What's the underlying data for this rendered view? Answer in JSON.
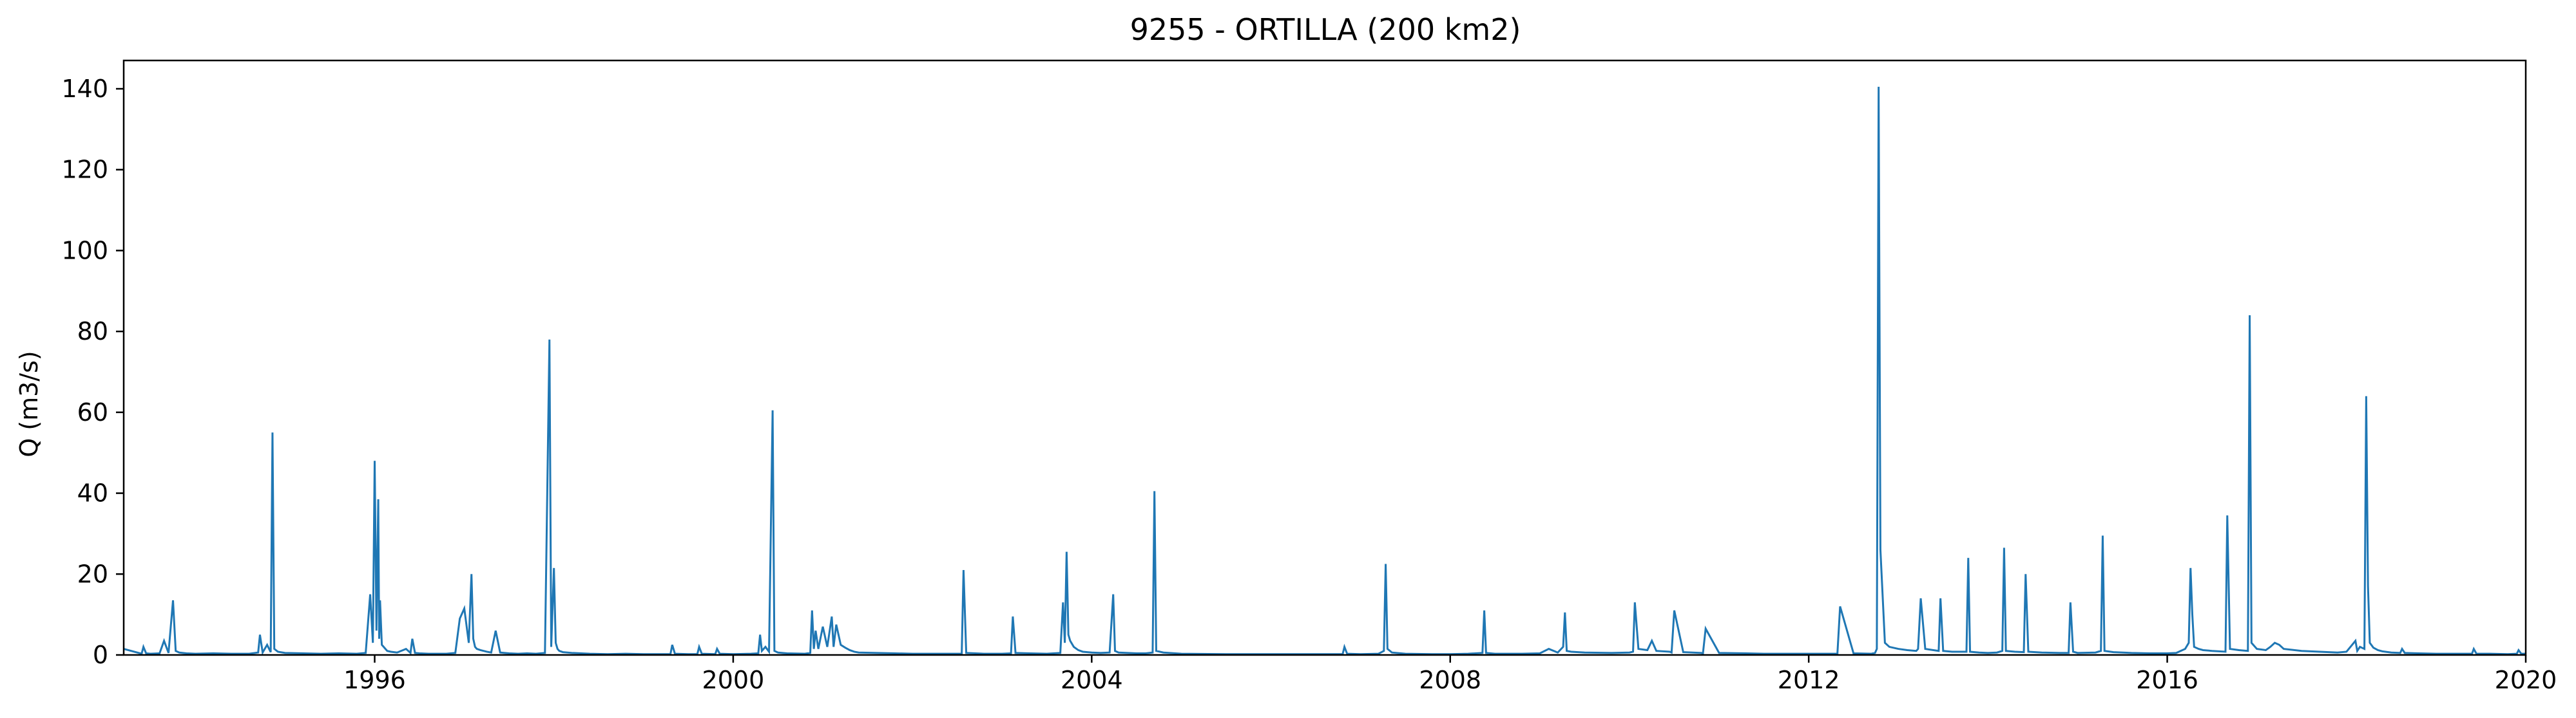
{
  "chart_data": {
    "type": "line",
    "title": "9255 - ORTILLA (200 km2)",
    "xlabel": "",
    "ylabel": "Q (m3/s)",
    "xlim": [
      1993.2,
      2020.0
    ],
    "ylim": [
      0,
      147
    ],
    "x_ticks": [
      "1996",
      "2000",
      "2004",
      "2008",
      "2012",
      "2016",
      "2020"
    ],
    "y_ticks": [
      "0",
      "20",
      "40",
      "60",
      "80",
      "100",
      "120",
      "140"
    ],
    "grid": false,
    "legend": "none",
    "series": [
      {
        "color": "#1f77b4",
        "x": [
          1993.2,
          1993.4,
          1993.42,
          1993.45,
          1993.5,
          1993.6,
          1993.65,
          1993.7,
          1993.75,
          1993.78,
          1993.8,
          1993.82,
          1993.86,
          1993.9,
          1994.0,
          1994.2,
          1994.4,
          1994.6,
          1994.7,
          1994.72,
          1994.75,
          1994.8,
          1994.84,
          1994.86,
          1994.88,
          1994.92,
          1995.0,
          1995.2,
          1995.4,
          1995.6,
          1995.8,
          1995.9,
          1995.95,
          1995.98,
          1996.0,
          1996.02,
          1996.04,
          1996.05,
          1996.06,
          1996.08,
          1996.1,
          1996.12,
          1996.14,
          1996.18,
          1996.25,
          1996.35,
          1996.4,
          1996.42,
          1996.45,
          1996.5,
          1996.6,
          1996.8,
          1996.9,
          1996.95,
          1997.0,
          1997.05,
          1997.08,
          1997.1,
          1997.12,
          1997.14,
          1997.18,
          1997.25,
          1997.3,
          1997.35,
          1997.4,
          1997.45,
          1997.5,
          1997.6,
          1997.7,
          1997.8,
          1997.9,
          1997.95,
          1997.97,
          1998.0,
          1998.02,
          1998.04,
          1998.06,
          1998.1,
          1998.2,
          1998.4,
          1998.6,
          1998.8,
          1999.0,
          1999.2,
          1999.3,
          1999.32,
          1999.35,
          1999.5,
          1999.6,
          1999.62,
          1999.65,
          1999.8,
          1999.82,
          1999.85,
          2000.0,
          2000.2,
          2000.28,
          2000.3,
          2000.32,
          2000.36,
          2000.4,
          2000.44,
          2000.46,
          2000.5,
          2000.6,
          2000.8,
          2000.86,
          2000.88,
          2000.9,
          2000.92,
          2000.95,
          2001.0,
          2001.05,
          2001.1,
          2001.12,
          2001.15,
          2001.2,
          2001.25,
          2001.3,
          2001.35,
          2001.4,
          2001.6,
          2001.8,
          2002.0,
          2002.2,
          2002.4,
          2002.55,
          2002.57,
          2002.6,
          2002.8,
          2003.0,
          2003.1,
          2003.12,
          2003.15,
          2003.3,
          2003.5,
          2003.65,
          2003.68,
          2003.7,
          2003.72,
          2003.74,
          2003.76,
          2003.8,
          2003.85,
          2003.9,
          2004.0,
          2004.1,
          2004.2,
          2004.24,
          2004.26,
          2004.3,
          2004.4,
          2004.5,
          2004.6,
          2004.68,
          2004.7,
          2004.72,
          2004.8,
          2005.0,
          2005.5,
          2006.0,
          2006.5,
          2006.8,
          2006.82,
          2006.85,
          2007.0,
          2007.2,
          2007.26,
          2007.28,
          2007.3,
          2007.35,
          2007.5,
          2007.8,
          2008.0,
          2008.2,
          2008.36,
          2008.38,
          2008.4,
          2008.5,
          2008.8,
          2009.0,
          2009.1,
          2009.2,
          2009.26,
          2009.28,
          2009.3,
          2009.35,
          2009.5,
          2009.8,
          2010.0,
          2010.04,
          2010.06,
          2010.1,
          2010.2,
          2010.25,
          2010.3,
          2010.45,
          2010.47,
          2010.5,
          2010.6,
          2010.8,
          2010.82,
          2010.85,
          2011.0,
          2011.3,
          2011.5,
          2011.8,
          2012.0,
          2012.3,
          2012.32,
          2012.35,
          2012.5,
          2012.7,
          2012.74,
          2012.76,
          2012.78,
          2012.8,
          2012.85,
          2012.9,
          2013.0,
          2013.1,
          2013.2,
          2013.22,
          2013.25,
          2013.3,
          2013.45,
          2013.47,
          2013.5,
          2013.6,
          2013.76,
          2013.78,
          2013.8,
          2013.9,
          2014.0,
          2014.1,
          2014.16,
          2014.18,
          2014.2,
          2014.3,
          2014.4,
          2014.42,
          2014.45,
          2014.6,
          2014.8,
          2014.9,
          2014.92,
          2014.95,
          2015.0,
          2015.2,
          2015.26,
          2015.28,
          2015.3,
          2015.4,
          2015.6,
          2015.8,
          2016.0,
          2016.1,
          2016.2,
          2016.24,
          2016.26,
          2016.28,
          2016.3,
          2016.35,
          2016.4,
          2016.5,
          2016.65,
          2016.67,
          2016.7,
          2016.8,
          2016.9,
          2016.92,
          2016.94,
          2017.0,
          2017.1,
          2017.15,
          2017.2,
          2017.25,
          2017.3,
          2017.5,
          2017.7,
          2017.9,
          2018.0,
          2018.1,
          2018.12,
          2018.15,
          2018.2,
          2018.22,
          2018.24,
          2018.26,
          2018.3,
          2018.35,
          2018.4,
          2018.5,
          2018.6,
          2018.62,
          2018.65,
          2018.8,
          2019.0,
          2019.2,
          2019.4,
          2019.42,
          2019.45,
          2019.6,
          2019.8,
          2019.9,
          2019.92,
          2019.95,
          2020.0
        ],
        "y": [
          1.5,
          0.3,
          2.0,
          0.4,
          0.3,
          0.4,
          3.5,
          0.5,
          13.5,
          1.0,
          0.8,
          0.6,
          0.5,
          0.4,
          0.3,
          0.4,
          0.3,
          0.3,
          0.6,
          5.0,
          0.6,
          2.5,
          0.7,
          55.0,
          1.5,
          0.8,
          0.5,
          0.4,
          0.3,
          0.4,
          0.3,
          0.5,
          15.0,
          3.0,
          48.0,
          6.0,
          38.5,
          4.0,
          13.5,
          2.5,
          2.0,
          1.5,
          1.0,
          0.8,
          0.6,
          1.5,
          0.5,
          4.0,
          0.5,
          0.4,
          0.3,
          0.3,
          0.5,
          9.0,
          11.5,
          3.0,
          20.0,
          4.0,
          2.0,
          1.5,
          1.2,
          0.8,
          0.6,
          6.0,
          0.6,
          0.5,
          0.4,
          0.3,
          0.4,
          0.3,
          0.5,
          78.0,
          2.0,
          21.5,
          3.0,
          1.5,
          1.0,
          0.7,
          0.5,
          0.3,
          0.2,
          0.3,
          0.2,
          0.2,
          0.2,
          2.5,
          0.3,
          0.2,
          0.2,
          2.0,
          0.3,
          0.2,
          1.5,
          0.3,
          0.2,
          0.3,
          0.4,
          5.0,
          1.0,
          2.0,
          0.8,
          60.5,
          1.0,
          0.6,
          0.4,
          0.3,
          0.5,
          11.0,
          1.5,
          6.0,
          1.5,
          7.0,
          2.0,
          9.5,
          2.0,
          7.5,
          2.5,
          1.8,
          1.2,
          0.8,
          0.6,
          0.5,
          0.4,
          0.3,
          0.3,
          0.3,
          0.3,
          21.0,
          0.5,
          0.3,
          0.3,
          0.4,
          9.5,
          0.5,
          0.4,
          0.3,
          0.5,
          13.0,
          3.0,
          25.5,
          5.0,
          3.5,
          2.0,
          1.2,
          0.8,
          0.6,
          0.5,
          0.6,
          15.0,
          1.0,
          0.6,
          0.5,
          0.4,
          0.4,
          0.6,
          40.5,
          1.0,
          0.6,
          0.3,
          0.2,
          0.2,
          0.2,
          0.2,
          2.0,
          0.3,
          0.2,
          0.3,
          1.0,
          22.5,
          1.5,
          0.6,
          0.3,
          0.2,
          0.2,
          0.3,
          0.5,
          11.0,
          0.5,
          0.3,
          0.3,
          0.4,
          1.5,
          0.6,
          2.0,
          10.5,
          1.0,
          0.8,
          0.6,
          0.5,
          0.6,
          0.8,
          13.0,
          1.5,
          1.2,
          3.5,
          1.0,
          0.8,
          0.6,
          11.0,
          0.7,
          0.5,
          0.4,
          6.5,
          0.5,
          0.4,
          0.3,
          0.3,
          0.3,
          0.3,
          0.3,
          12.0,
          0.4,
          0.3,
          0.5,
          1.5,
          140.5,
          26.0,
          3.0,
          2.0,
          1.5,
          1.2,
          1.0,
          1.5,
          14.0,
          1.5,
          1.0,
          14.0,
          1.0,
          0.8,
          0.8,
          24.0,
          0.8,
          0.6,
          0.5,
          0.6,
          1.0,
          26.5,
          1.0,
          0.8,
          0.7,
          20.0,
          0.8,
          0.6,
          0.5,
          0.5,
          13.0,
          0.8,
          0.5,
          0.6,
          1.0,
          29.5,
          1.0,
          0.7,
          0.5,
          0.4,
          0.4,
          0.5,
          1.5,
          3.0,
          21.5,
          10.0,
          2.0,
          1.5,
          1.2,
          1.0,
          0.8,
          34.5,
          1.5,
          1.2,
          1.0,
          84.0,
          3.0,
          1.5,
          1.2,
          2.0,
          3.0,
          2.5,
          1.5,
          1.0,
          0.8,
          0.6,
          0.8,
          3.5,
          1.0,
          2.0,
          1.5,
          64.0,
          17.0,
          3.0,
          1.8,
          1.2,
          0.9,
          0.6,
          0.5,
          1.5,
          0.5,
          0.4,
          0.3,
          0.3,
          0.3,
          1.5,
          0.3,
          0.3,
          0.2,
          0.3,
          1.2,
          0.3,
          0.3
        ]
      }
    ]
  }
}
